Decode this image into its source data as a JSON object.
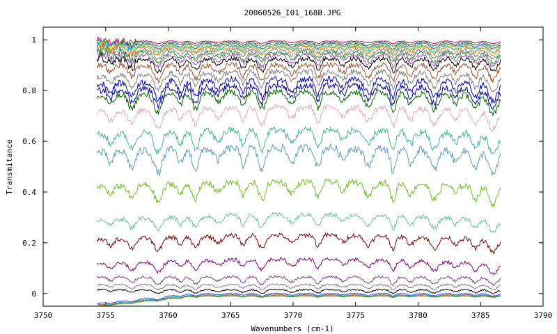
{
  "chart_data": {
    "type": "line",
    "title": "20060526_I01_168B.JPG",
    "xlabel": "Wavenumbers (cm-1)",
    "ylabel": "Transmitance",
    "xlim": [
      3750,
      3790
    ],
    "ylim": [
      -0.05,
      1.05
    ],
    "x_ticks": [
      3750,
      3755,
      3760,
      3765,
      3770,
      3775,
      3780,
      3785,
      3790
    ],
    "y_ticks": [
      0,
      0.2,
      0.4,
      0.6,
      0.8,
      1
    ],
    "x_tick_labels": [
      "3750",
      "3755",
      "3760",
      "3765",
      "3770",
      "3775",
      "3780",
      "3785",
      "3790"
    ],
    "y_tick_labels": [
      "0",
      "0.2",
      "0.4",
      "0.6",
      "0.8",
      "1"
    ],
    "x_range": [
      3754.3,
      3786.6
    ],
    "absorption_lines": [
      3755.4,
      3757.1,
      3759.2,
      3761.0,
      3762.2,
      3764.0,
      3766.0,
      3767.5,
      3769.9,
      3772.0,
      3774.0,
      3776.0,
      3778.0,
      3779.4,
      3781.3,
      3783.0,
      3784.6,
      3786.0
    ],
    "grid": false,
    "series": [
      {
        "color": "#e6007e",
        "base": 0.995,
        "depth": 0.01
      },
      {
        "color": "#00a000",
        "base": 0.99,
        "depth": 0.015
      },
      {
        "color": "#4040ff",
        "base": 0.985,
        "depth": 0.02
      },
      {
        "color": "#c0c000",
        "base": 0.98,
        "depth": 0.02
      },
      {
        "color": "#00c0c0",
        "base": 0.975,
        "depth": 0.025
      },
      {
        "color": "#ff7f00",
        "base": 0.97,
        "depth": 0.03
      },
      {
        "color": "#808080",
        "base": 0.96,
        "depth": 0.035
      },
      {
        "color": "#2f8f2f",
        "base": 0.95,
        "depth": 0.04
      },
      {
        "color": "#9b59b6",
        "base": 0.94,
        "depth": 0.045
      },
      {
        "color": "#000000",
        "base": 0.925,
        "depth": 0.05
      },
      {
        "color": "#a0522d",
        "base": 0.9,
        "depth": 0.06
      },
      {
        "color": "#808080",
        "base": 0.875,
        "depth": 0.06
      },
      {
        "color": "#0000c0",
        "base": 0.845,
        "depth": 0.07
      },
      {
        "color": "#0000a0",
        "base": 0.82,
        "depth": 0.07
      },
      {
        "color": "#006400",
        "base": 0.795,
        "depth": 0.07
      },
      {
        "color": "#e6a8c0",
        "base": 0.735,
        "depth": 0.07
      },
      {
        "color": "#3cb88c",
        "base": 0.645,
        "depth": 0.08
      },
      {
        "color": "#5f9ac6",
        "base": 0.575,
        "depth": 0.09
      },
      {
        "color": "#6abf1c",
        "base": 0.44,
        "depth": 0.07
      },
      {
        "color": "#66c2a5",
        "base": 0.31,
        "depth": 0.05
      },
      {
        "color": "#7b0000",
        "base": 0.23,
        "depth": 0.05
      },
      {
        "color": "#800080",
        "base": 0.135,
        "depth": 0.04
      },
      {
        "color": "#884488",
        "base": 0.065,
        "depth": 0.03
      },
      {
        "color": "#808080",
        "base": 0.035,
        "depth": 0.02
      },
      {
        "color": "#000000",
        "base": 0.015,
        "depth": 0.015
      },
      {
        "color": "#4040ff",
        "base": 0.0,
        "depth": 0.01
      },
      {
        "color": "#00a0a0",
        "base": -0.005,
        "depth": 0.008
      },
      {
        "color": "#ff7f00",
        "base": -0.008,
        "depth": 0.006
      },
      {
        "color": "#2f8f2f",
        "base": -0.01,
        "depth": 0.005
      }
    ]
  }
}
